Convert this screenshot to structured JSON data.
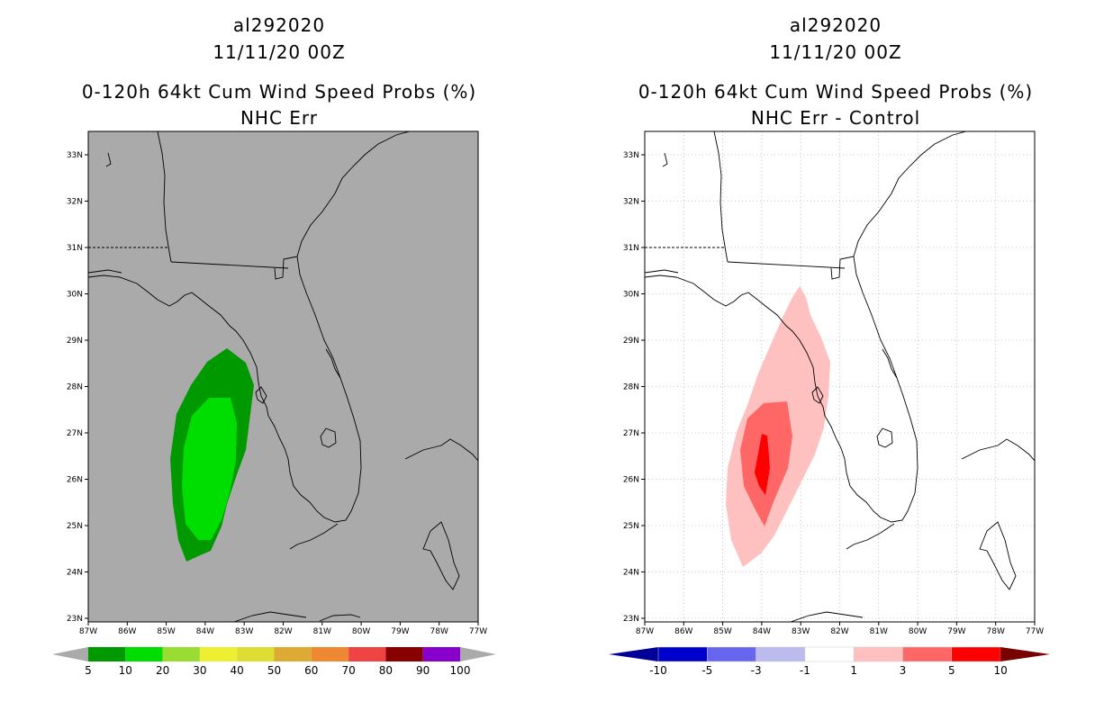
{
  "left": {
    "storm_id": "al292020",
    "datetime": "11/11/20 00Z",
    "product": "0-120h 64kt Cum Wind Speed Probs (%)",
    "subtitle": "NHC Err",
    "lat_labels": [
      "33N",
      "32N",
      "31N",
      "30N",
      "29N",
      "28N",
      "27N",
      "26N",
      "25N",
      "24N",
      "23N"
    ],
    "lon_labels": [
      "87W",
      "86W",
      "85W",
      "84W",
      "83W",
      "82W",
      "81W",
      "80W",
      "79W",
      "78W",
      "77W"
    ],
    "colorbar": {
      "labels": [
        "5",
        "10",
        "20",
        "30",
        "40",
        "50",
        "60",
        "70",
        "80",
        "90",
        "100"
      ],
      "colors": [
        "#009900",
        "#00dd00",
        "#99dd33",
        "#eeee33",
        "#dddd33",
        "#ddaa33",
        "#ee8833",
        "#ee4444",
        "#880000",
        "#8800cc"
      ],
      "end_color": "#aaaaaa"
    },
    "background_color": "#aaaaaa",
    "contour_colors": [
      "#009900",
      "#00dd00"
    ]
  },
  "right": {
    "storm_id": "al292020",
    "datetime": "11/11/20 00Z",
    "product": "0-120h 64kt Cum Wind Speed Probs (%)",
    "subtitle": "NHC Err - Control",
    "lat_labels": [
      "33N",
      "32N",
      "31N",
      "30N",
      "29N",
      "28N",
      "27N",
      "26N",
      "25N",
      "24N",
      "23N"
    ],
    "lon_labels": [
      "87W",
      "86W",
      "85W",
      "84W",
      "83W",
      "82W",
      "81W",
      "80W",
      "79W",
      "78W",
      "77W"
    ],
    "colorbar": {
      "labels": [
        "-10",
        "-5",
        "-3",
        "-1",
        "1",
        "3",
        "5",
        "10"
      ],
      "colors": [
        "#0000cc",
        "#6666ee",
        "#bbbbee",
        "#ffffff",
        "#ffc0c0",
        "#ff6666",
        "#ff0000"
      ],
      "low_end_color": "#000099",
      "high_end_color": "#770000"
    },
    "background_color": "#ffffff",
    "contour_colors": [
      "#ffc0c0",
      "#ff6666",
      "#ff0000"
    ]
  }
}
